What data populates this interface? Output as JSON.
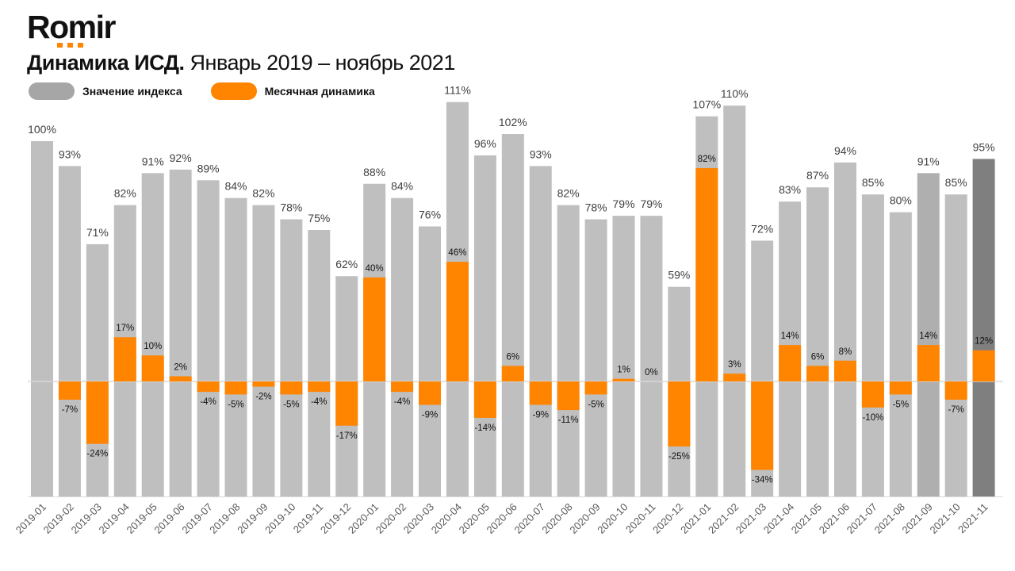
{
  "brand": {
    "logo_text": "Romir"
  },
  "header": {
    "title_bold": "Динамика ИСД.",
    "title_rest": " Январь 2019 – ноябрь 2021"
  },
  "colors": {
    "index": "#bfbfbf",
    "index_highlight_2021_09": "#afafaf",
    "index_last": "#7f7f7f",
    "monthly": "#ff8400",
    "axis": "#d9d9d9",
    "text_index": "#404040",
    "text_monthly": "#111111",
    "tick": "#595959"
  },
  "chart_data": {
    "type": "bar",
    "title": "Динамика ИСД. Январь 2019 – ноябрь 2021",
    "xlabel": "",
    "ylabel": "",
    "legend": {
      "position": "top-left",
      "entries": [
        "Значение индекса",
        "Месячная динамика"
      ]
    },
    "categories": [
      "2019-01",
      "2019-02",
      "2019-03",
      "2019-04",
      "2019-05",
      "2019-06",
      "2019-07",
      "2019-08",
      "2019-09",
      "2019-10",
      "2019-11",
      "2019-12",
      "2020-01",
      "2020-02",
      "2020-03",
      "2020-04",
      "2020-05",
      "2020-06",
      "2020-07",
      "2020-08",
      "2020-09",
      "2020-10",
      "2020-11",
      "2020-12",
      "2021-01",
      "2021-02",
      "2021-03",
      "2021-04",
      "2021-05",
      "2021-06",
      "2021-07",
      "2021-08",
      "2021-09",
      "2021-10",
      "2021-11"
    ],
    "series": [
      {
        "name": "Значение индекса",
        "unit": "%",
        "values": [
          100,
          93,
          71,
          82,
          91,
          92,
          89,
          84,
          82,
          78,
          75,
          62,
          88,
          84,
          76,
          111,
          96,
          102,
          93,
          82,
          78,
          79,
          79,
          59,
          107,
          110,
          72,
          83,
          87,
          94,
          85,
          80,
          91,
          85,
          95
        ]
      },
      {
        "name": "Месячная динамика",
        "unit": "%",
        "values": [
          null,
          -7,
          -24,
          17,
          10,
          2,
          -4,
          -5,
          -2,
          -5,
          -4,
          -17,
          40,
          -4,
          -9,
          46,
          -14,
          6,
          -9,
          -11,
          -5,
          1,
          0,
          -25,
          82,
          3,
          -34,
          14,
          6,
          8,
          -10,
          -5,
          14,
          -7,
          12
        ]
      }
    ],
    "grid": false
  }
}
